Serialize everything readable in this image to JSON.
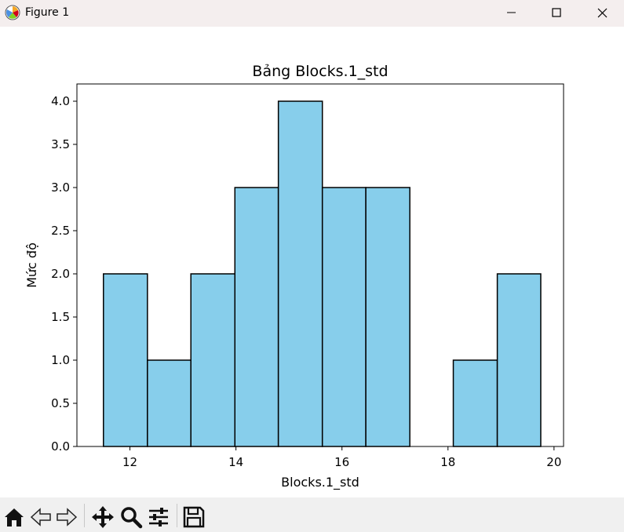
{
  "window": {
    "title": "Figure 1",
    "controls": [
      "minimize-icon",
      "maximize-icon",
      "close-icon"
    ]
  },
  "toolbar": {
    "buttons": [
      "home-icon",
      "back-icon",
      "forward-icon",
      "pan-icon",
      "zoom-icon",
      "configure-subplots-icon",
      "save-icon"
    ]
  },
  "colors": {
    "bar_fill": "#87ceeb",
    "bar_edge": "#000000",
    "titlebar": "#f4eeee",
    "toolbar": "#f0f0f0"
  },
  "chart_data": {
    "type": "bar",
    "title": "Bảng Blocks.1_std",
    "xlabel": "Blocks.1_std",
    "ylabel": "Mức độ",
    "bin_edges": [
      11.5,
      12.33,
      13.15,
      13.98,
      14.8,
      15.63,
      16.45,
      17.28,
      18.1,
      18.93,
      19.75
    ],
    "values": [
      2,
      1,
      2,
      3,
      4,
      3,
      3,
      0,
      1,
      2
    ],
    "xlim": [
      11.0,
      20.18
    ],
    "ylim": [
      0,
      4.2
    ],
    "xticks": [
      12,
      14,
      16,
      18,
      20
    ],
    "yticks": [
      0.0,
      0.5,
      1.0,
      1.5,
      2.0,
      2.5,
      3.0,
      3.5,
      4.0
    ],
    "xtick_labels": [
      "12",
      "14",
      "16",
      "18",
      "20"
    ],
    "ytick_labels": [
      "0.0",
      "0.5",
      "1.0",
      "1.5",
      "2.0",
      "2.5",
      "3.0",
      "3.5",
      "4.0"
    ],
    "grid": false,
    "legend": "none"
  }
}
